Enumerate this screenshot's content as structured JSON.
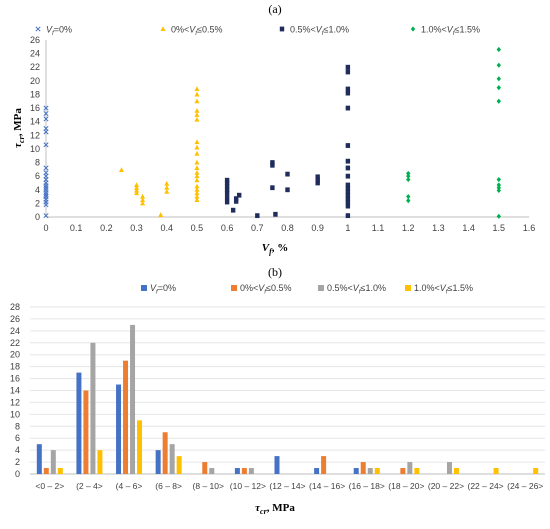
{
  "chart_data": [
    {
      "panel_label": "(a)",
      "type": "scatter",
      "xlabel": "V_f, %",
      "ylabel": "τcr, MPa",
      "xlim": [
        0,
        1.6
      ],
      "ylim": [
        0,
        26
      ],
      "x_ticks": [
        0,
        0.1,
        0.2,
        0.3,
        0.4,
        0.5,
        0.6,
        0.7,
        0.8,
        0.9,
        1,
        1.1,
        1.2,
        1.3,
        1.4,
        1.5,
        1.6
      ],
      "x_tick_labels": [
        "0",
        "0.1",
        "0.2",
        "0.3",
        "0.4",
        "0.5",
        "0.6",
        "0.7",
        "0.8",
        "0.9",
        "1",
        "1.1",
        "1.2",
        "1.3",
        "1.4",
        "1.5",
        "1.6"
      ],
      "y_ticks": [
        0,
        2,
        4,
        6,
        8,
        10,
        12,
        14,
        16,
        18,
        20,
        22,
        24,
        26
      ],
      "y_tick_labels": [
        "0",
        "2",
        "4",
        "6",
        "8",
        "10",
        "12",
        "14",
        "16",
        "18",
        "20",
        "22",
        "24",
        "26"
      ],
      "grid": false,
      "legend_position": "top",
      "series": [
        {
          "name": "V_f=0%",
          "marker": "x",
          "color": "#4472C4",
          "points": [
            [
              0,
              0.2
            ],
            [
              0,
              1.8
            ],
            [
              0,
              2.2
            ],
            [
              0,
              2.6
            ],
            [
              0,
              3.0
            ],
            [
              0,
              3.3
            ],
            [
              0,
              3.6
            ],
            [
              0,
              4.0
            ],
            [
              0,
              4.3
            ],
            [
              0,
              4.6
            ],
            [
              0,
              5.0
            ],
            [
              0,
              5.5
            ],
            [
              0,
              6.0
            ],
            [
              0,
              6.5
            ],
            [
              0,
              7.2
            ],
            [
              0,
              10.6
            ],
            [
              0,
              12.5
            ],
            [
              0,
              13.0
            ],
            [
              0,
              14.4
            ],
            [
              0,
              15.2
            ],
            [
              0,
              16.0
            ]
          ]
        },
        {
          "name": "0%<V_f≤0.5%",
          "marker": "triangle",
          "color": "#FFC000",
          "points": [
            [
              0.25,
              6.9
            ],
            [
              0.3,
              3.5
            ],
            [
              0.3,
              3.9
            ],
            [
              0.3,
              4.3
            ],
            [
              0.3,
              4.7
            ],
            [
              0.32,
              2.0
            ],
            [
              0.32,
              2.5
            ],
            [
              0.32,
              3.0
            ],
            [
              0.38,
              0.3
            ],
            [
              0.4,
              3.7
            ],
            [
              0.4,
              4.3
            ],
            [
              0.4,
              4.9
            ],
            [
              0.5,
              2.5
            ],
            [
              0.5,
              3.0
            ],
            [
              0.5,
              3.5
            ],
            [
              0.5,
              4.0
            ],
            [
              0.5,
              4.5
            ],
            [
              0.5,
              5.4
            ],
            [
              0.5,
              6.0
            ],
            [
              0.5,
              6.5
            ],
            [
              0.5,
              7.2
            ],
            [
              0.5,
              8.0
            ],
            [
              0.5,
              9.3
            ],
            [
              0.5,
              10.2
            ],
            [
              0.5,
              11.0
            ],
            [
              0.5,
              14.3
            ],
            [
              0.5,
              15.0
            ],
            [
              0.5,
              15.6
            ],
            [
              0.5,
              17.0
            ],
            [
              0.5,
              18.0
            ],
            [
              0.5,
              18.8
            ]
          ]
        },
        {
          "name": "0.5%<V_f≤1.0%",
          "marker": "square",
          "color": "#1F2C5C",
          "points": [
            [
              0.6,
              2.2
            ],
            [
              0.6,
              2.8
            ],
            [
              0.6,
              3.5
            ],
            [
              0.6,
              4.0
            ],
            [
              0.6,
              4.5
            ],
            [
              0.6,
              5.0
            ],
            [
              0.6,
              5.4
            ],
            [
              0.62,
              1.0
            ],
            [
              0.63,
              2.3
            ],
            [
              0.63,
              2.7
            ],
            [
              0.64,
              3.2
            ],
            [
              0.7,
              0.2
            ],
            [
              0.75,
              4.3
            ],
            [
              0.75,
              7.6
            ],
            [
              0.75,
              8.0
            ],
            [
              0.76,
              0.4
            ],
            [
              0.8,
              4.0
            ],
            [
              0.8,
              6.3
            ],
            [
              0.9,
              5.0
            ],
            [
              0.9,
              5.4
            ],
            [
              0.9,
              5.9
            ],
            [
              1,
              0.2
            ],
            [
              1,
              1.6
            ],
            [
              1,
              2.2
            ],
            [
              1,
              2.7
            ],
            [
              1,
              3.2
            ],
            [
              1,
              3.7
            ],
            [
              1,
              4.2
            ],
            [
              1,
              4.7
            ],
            [
              1,
              6.0
            ],
            [
              1,
              7.2
            ],
            [
              1,
              8.2
            ],
            [
              1,
              10.5
            ],
            [
              1,
              16.0
            ],
            [
              1,
              18.2
            ],
            [
              1,
              18.8
            ],
            [
              1,
              21.3
            ],
            [
              1,
              22.0
            ]
          ]
        },
        {
          "name": "1.0%<V_f≤1.5%",
          "marker": "diamond",
          "color": "#00B050",
          "points": [
            [
              1.2,
              2.4
            ],
            [
              1.2,
              3.0
            ],
            [
              1.2,
              5.5
            ],
            [
              1.2,
              6.0
            ],
            [
              1.2,
              6.4
            ],
            [
              1.5,
              0.1
            ],
            [
              1.5,
              3.9
            ],
            [
              1.5,
              4.3
            ],
            [
              1.5,
              4.7
            ],
            [
              1.5,
              5.5
            ],
            [
              1.5,
              17.0
            ],
            [
              1.5,
              19.0
            ],
            [
              1.5,
              20.3
            ],
            [
              1.5,
              22.3
            ],
            [
              1.5,
              24.6
            ]
          ]
        }
      ]
    },
    {
      "panel_label": "(b)",
      "type": "bar",
      "xlabel": "τcr, MPa",
      "ylabel": "",
      "ylim": [
        0,
        28
      ],
      "y_ticks": [
        0,
        2,
        4,
        6,
        8,
        10,
        12,
        14,
        16,
        18,
        20,
        22,
        24,
        26,
        28
      ],
      "y_tick_labels": [
        "0",
        "2",
        "4",
        "6",
        "8",
        "10",
        "12",
        "14",
        "16",
        "18",
        "20",
        "22",
        "24",
        "26",
        "28"
      ],
      "grid": true,
      "legend_position": "top",
      "categories": [
        "<0 – 2>",
        "(2 – 4>",
        "(4 – 6>",
        "(6 – 8>",
        "(8 – 10>",
        "(10 – 12>",
        "(12 – 14>",
        "(14 – 16>",
        "(16 – 18>",
        "(18 – 20>",
        "(20 – 22>",
        "(22 – 24>",
        "(24 – 26>"
      ],
      "series": [
        {
          "name": "V_f=0%",
          "color": "#4472C4",
          "values": [
            5,
            17,
            15,
            4,
            0,
            1,
            3,
            1,
            1,
            0,
            0,
            0,
            0
          ]
        },
        {
          "name": "0%<V_f≤0.5%",
          "color": "#ED7D31",
          "values": [
            1,
            14,
            19,
            7,
            2,
            1,
            0,
            3,
            2,
            1,
            0,
            0,
            0
          ]
        },
        {
          "name": "0.5%<V_f≤1.0%",
          "color": "#A5A5A5",
          "values": [
            4,
            22,
            25,
            5,
            1,
            1,
            0,
            0,
            1,
            2,
            2,
            0,
            0
          ]
        },
        {
          "name": "1.0%<V_f≤1.5%",
          "color": "#FFC000",
          "values": [
            1,
            4,
            9,
            3,
            0,
            0,
            0,
            0,
            1,
            1,
            1,
            1,
            1
          ]
        }
      ]
    }
  ]
}
